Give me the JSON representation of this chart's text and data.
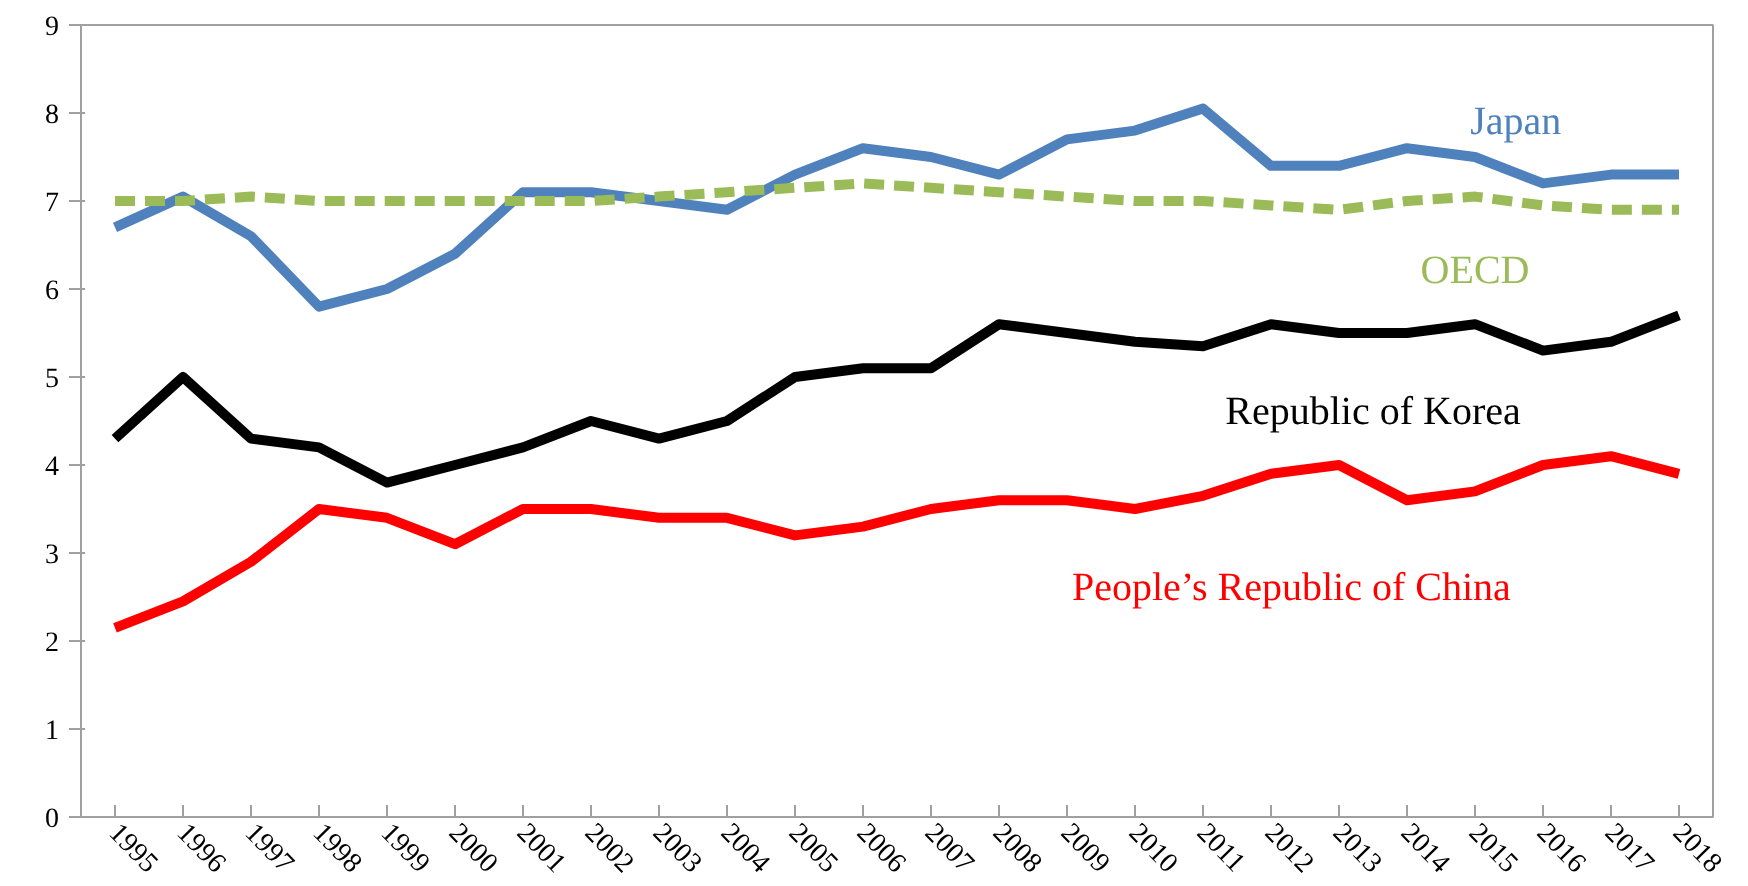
{
  "chart_data": {
    "type": "line",
    "categories": [
      "1995",
      "1996",
      "1997",
      "1998",
      "1999",
      "2000",
      "2001",
      "2002",
      "2003",
      "2004",
      "2005",
      "2006",
      "2007",
      "2008",
      "2009",
      "2010",
      "2011",
      "2012",
      "2013",
      "2014",
      "2015",
      "2016",
      "2017",
      "2018"
    ],
    "series": [
      {
        "name": "Japan",
        "color": "#4f81bd",
        "line_style": "solid",
        "values": [
          6.7,
          7.05,
          6.6,
          5.8,
          6.0,
          6.4,
          7.1,
          7.1,
          7.0,
          6.9,
          7.3,
          7.6,
          7.5,
          7.3,
          7.7,
          7.8,
          8.05,
          7.4,
          7.4,
          7.6,
          7.5,
          7.2,
          7.3,
          7.3
        ]
      },
      {
        "name": "OECD",
        "color": "#9bbb59",
        "line_style": "dashed",
        "values": [
          7.0,
          7.0,
          7.05,
          7.0,
          7.0,
          7.0,
          7.0,
          7.0,
          7.05,
          7.1,
          7.15,
          7.2,
          7.15,
          7.1,
          7.05,
          7.0,
          7.0,
          6.95,
          6.9,
          7.0,
          7.05,
          6.95,
          6.9,
          6.9
        ]
      },
      {
        "name": "Republic of Korea",
        "color": "#000000",
        "line_style": "solid",
        "values": [
          4.3,
          5.0,
          4.3,
          4.2,
          3.8,
          4.0,
          4.2,
          4.5,
          4.3,
          4.5,
          5.0,
          5.1,
          5.1,
          5.6,
          5.5,
          5.4,
          5.35,
          5.6,
          5.5,
          5.5,
          5.6,
          5.3,
          5.4,
          5.7
        ]
      },
      {
        "name": "People’s Republic of China",
        "color": "#ff0000",
        "line_style": "solid",
        "values": [
          2.15,
          2.45,
          2.9,
          3.5,
          3.4,
          3.1,
          3.5,
          3.5,
          3.4,
          3.4,
          3.2,
          3.3,
          3.5,
          3.6,
          3.6,
          3.5,
          3.65,
          3.9,
          4.0,
          3.6,
          3.7,
          4.0,
          4.1,
          3.9
        ]
      }
    ],
    "ylim": [
      0,
      9
    ],
    "yticks": [
      0,
      1,
      2,
      3,
      4,
      5,
      6,
      7,
      8,
      9
    ],
    "grid": false,
    "marker": "none"
  }
}
